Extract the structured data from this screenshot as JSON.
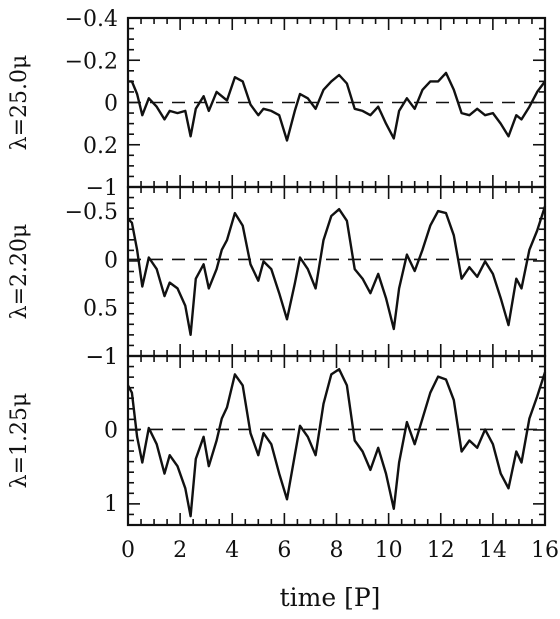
{
  "chart_data": {
    "type": "line",
    "xlabel": "time [P]",
    "xlim": [
      0,
      16
    ],
    "x_ticks": [
      0,
      2,
      4,
      6,
      8,
      10,
      12,
      14,
      16
    ],
    "panels": [
      {
        "ylabel": "λ=25.0μ",
        "ylim": [
          -0.4,
          0.4
        ],
        "y_ticks": [
          -0.4,
          -0.2,
          0,
          0.2
        ],
        "y_tick_labels": [
          "−0.4",
          "−0.2",
          "0",
          "0.2"
        ],
        "bottom_label": "−1",
        "reference_line": 0,
        "series": [
          {
            "x": [
              0,
              0.15,
              0.35,
              0.55,
              0.8,
              1.1,
              1.4,
              1.6,
              1.9,
              2.2,
              2.4,
              2.6,
              2.9,
              3.1,
              3.4,
              3.6,
              3.8,
              4.1,
              4.4,
              4.7,
              5.0,
              5.2,
              5.5,
              5.8,
              6.1,
              6.4,
              6.6,
              6.9,
              7.2,
              7.5,
              7.8,
              8.1,
              8.4,
              8.7,
              9.0,
              9.3,
              9.6,
              9.9,
              10.2,
              10.4,
              10.7,
              11.0,
              11.3,
              11.6,
              11.9,
              12.2,
              12.5,
              12.8,
              13.1,
              13.4,
              13.7,
              14.0,
              14.3,
              14.6,
              14.9,
              15.1,
              15.4,
              15.7,
              16.0
            ],
            "y": [
              -0.1,
              -0.1,
              -0.04,
              0.06,
              -0.02,
              0.02,
              0.08,
              0.04,
              0.05,
              0.04,
              0.16,
              0.03,
              -0.03,
              0.04,
              -0.05,
              -0.03,
              -0.01,
              -0.12,
              -0.1,
              0.01,
              0.06,
              0.03,
              0.04,
              0.06,
              0.18,
              0.04,
              -0.04,
              -0.02,
              0.03,
              -0.06,
              -0.1,
              -0.13,
              -0.09,
              0.03,
              0.04,
              0.06,
              0.02,
              0.1,
              0.17,
              0.04,
              -0.02,
              0.03,
              -0.06,
              -0.1,
              -0.1,
              -0.14,
              -0.06,
              0.05,
              0.06,
              0.03,
              0.06,
              0.05,
              0.1,
              0.16,
              0.06,
              0.08,
              0.02,
              -0.05,
              -0.1
            ]
          }
        ]
      },
      {
        "ylabel": "λ=2.20μ",
        "ylim": [
          -0.75,
          1
        ],
        "y_ticks": [
          -0.5,
          0,
          0.5
        ],
        "y_tick_labels": [
          "−0.5",
          "0",
          "0.5"
        ],
        "bottom_label": "−1",
        "reference_line": 0,
        "series": [
          {
            "x": [
              0,
              0.15,
              0.35,
              0.55,
              0.8,
              1.1,
              1.4,
              1.6,
              1.9,
              2.2,
              2.4,
              2.6,
              2.9,
              3.1,
              3.4,
              3.6,
              3.8,
              4.1,
              4.4,
              4.7,
              5.0,
              5.2,
              5.5,
              5.8,
              6.1,
              6.4,
              6.6,
              6.9,
              7.2,
              7.5,
              7.8,
              8.1,
              8.4,
              8.7,
              9.0,
              9.3,
              9.6,
              9.9,
              10.2,
              10.4,
              10.7,
              11.0,
              11.3,
              11.6,
              11.9,
              12.2,
              12.5,
              12.8,
              13.1,
              13.4,
              13.7,
              14.0,
              14.3,
              14.6,
              14.9,
              15.1,
              15.4,
              15.7,
              16.0
            ],
            "y": [
              -0.42,
              -0.38,
              -0.1,
              0.28,
              -0.02,
              0.1,
              0.38,
              0.24,
              0.3,
              0.48,
              0.78,
              0.2,
              0.05,
              0.3,
              0.1,
              -0.1,
              -0.2,
              -0.48,
              -0.35,
              0.05,
              0.22,
              0.02,
              0.1,
              0.35,
              0.62,
              0.25,
              -0.02,
              0.1,
              0.3,
              -0.2,
              -0.45,
              -0.52,
              -0.4,
              0.1,
              0.2,
              0.35,
              0.15,
              0.4,
              0.72,
              0.3,
              -0.05,
              0.12,
              -0.1,
              -0.35,
              -0.5,
              -0.48,
              -0.25,
              0.2,
              0.08,
              0.18,
              0.02,
              0.15,
              0.4,
              0.68,
              0.2,
              0.3,
              -0.1,
              -0.3,
              -0.55
            ]
          }
        ]
      },
      {
        "ylabel": "λ=1.25μ",
        "ylim": [
          -1,
          1.3
        ],
        "y_ticks": [
          0,
          1
        ],
        "y_tick_labels": [
          "0",
          "1"
        ],
        "top_label": "−1",
        "reference_line": 0,
        "series": [
          {
            "x": [
              0,
              0.15,
              0.35,
              0.55,
              0.8,
              1.1,
              1.4,
              1.6,
              1.9,
              2.2,
              2.4,
              2.6,
              2.9,
              3.1,
              3.4,
              3.6,
              3.8,
              4.1,
              4.4,
              4.7,
              5.0,
              5.2,
              5.5,
              5.8,
              6.1,
              6.4,
              6.6,
              6.9,
              7.2,
              7.5,
              7.8,
              8.1,
              8.4,
              8.7,
              9.0,
              9.3,
              9.6,
              9.9,
              10.2,
              10.4,
              10.7,
              11.0,
              11.3,
              11.6,
              11.9,
              12.2,
              12.5,
              12.8,
              13.1,
              13.4,
              13.7,
              14.0,
              14.3,
              14.6,
              14.9,
              15.1,
              15.4,
              15.7,
              16.0
            ],
            "y": [
              -0.6,
              -0.5,
              0.1,
              0.45,
              -0.02,
              0.2,
              0.6,
              0.35,
              0.5,
              0.8,
              1.18,
              0.4,
              0.1,
              0.5,
              0.15,
              -0.15,
              -0.3,
              -0.75,
              -0.6,
              0.05,
              0.35,
              0.05,
              0.2,
              0.6,
              0.95,
              0.35,
              -0.05,
              0.1,
              0.35,
              -0.35,
              -0.75,
              -0.82,
              -0.6,
              0.15,
              0.3,
              0.55,
              0.25,
              0.6,
              1.08,
              0.45,
              -0.1,
              0.2,
              -0.15,
              -0.5,
              -0.72,
              -0.68,
              -0.4,
              0.3,
              0.15,
              0.25,
              0.0,
              0.2,
              0.6,
              0.8,
              0.3,
              0.45,
              -0.15,
              -0.45,
              -0.78
            ]
          }
        ]
      }
    ]
  }
}
